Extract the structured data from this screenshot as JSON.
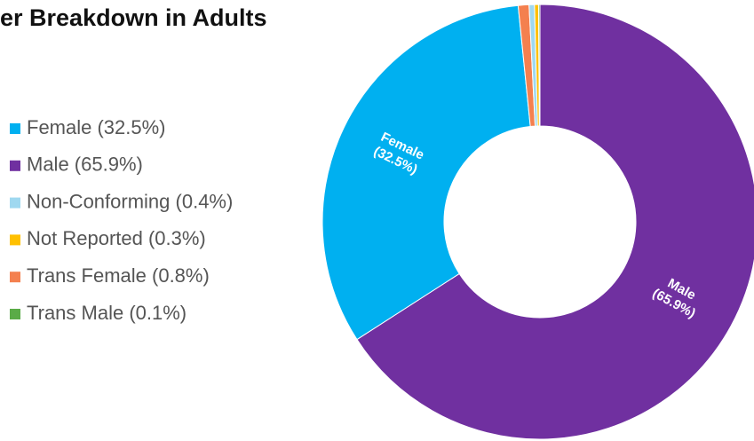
{
  "chart_data": {
    "type": "donut",
    "title": "er Breakdown in Adults",
    "categories": [
      "Male",
      "Female",
      "Trans Female",
      "Non-Conforming",
      "Not Reported",
      "Trans Male"
    ],
    "values": [
      65.9,
      32.5,
      0.8,
      0.4,
      0.3,
      0.1
    ],
    "value_labels": [
      "(65.9%)",
      "(32.5%)",
      null,
      null,
      null,
      null
    ],
    "colors": [
      "#7030a0",
      "#00b0f0",
      "#f4804f",
      "#9fd8f0",
      "#ffc000",
      "#5aab47"
    ],
    "legend": [
      {
        "label": "Female (32.5%)",
        "color": "#00b0f0"
      },
      {
        "label": "Male (65.9%)",
        "color": "#7030a0"
      },
      {
        "label": "Non-Conforming  (0.4%)",
        "color": "#9fd8f0"
      },
      {
        "label": "Not Reported (0.3%)",
        "color": "#ffc000"
      },
      {
        "label": "Trans Female (0.8%)",
        "color": "#f4804f"
      },
      {
        "label": "Trans Male (0.1%)",
        "color": "#5aab47"
      }
    ]
  }
}
